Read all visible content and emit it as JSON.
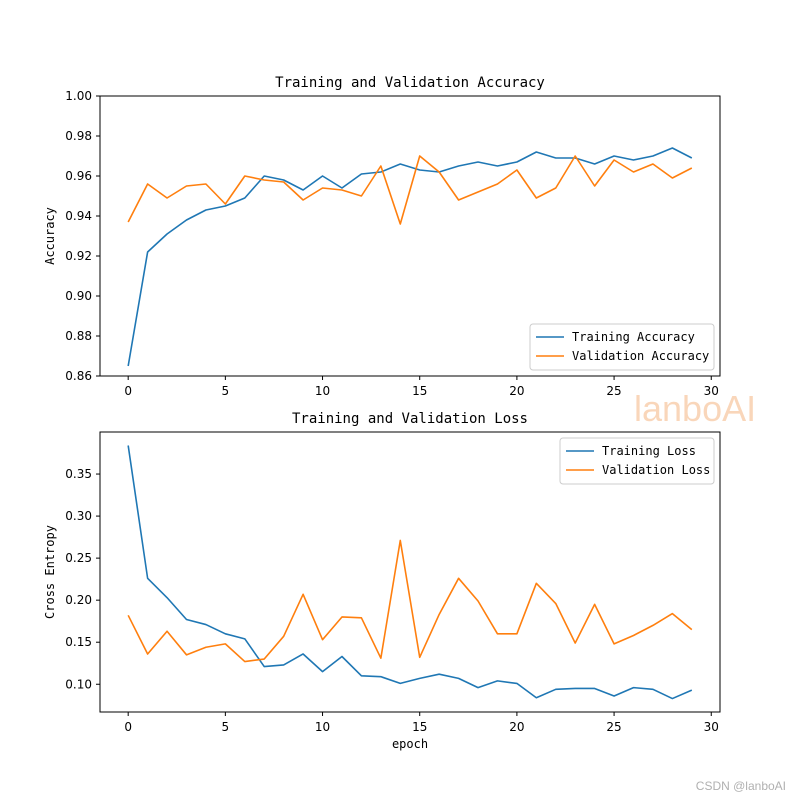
{
  "watermark": "lanboAI",
  "credit": "CSDN @lanboAI",
  "colors": {
    "training": "#1f77b4",
    "validation": "#ff7f0e"
  },
  "chart_data": [
    {
      "type": "line",
      "title": "Training and Validation Accuracy",
      "xlabel": "",
      "ylabel": "Accuracy",
      "xlim": [
        -1.45,
        30.45
      ],
      "ylim": [
        0.86,
        1.0
      ],
      "xticks": [
        0,
        5,
        10,
        15,
        20,
        25,
        30
      ],
      "yticks": [
        0.86,
        0.88,
        0.9,
        0.92,
        0.94,
        0.96,
        0.98,
        1.0
      ],
      "ytick_labels": [
        "0.86",
        "0.88",
        "0.90",
        "0.92",
        "0.94",
        "0.96",
        "0.98",
        "1.00"
      ],
      "legend_position": "lower-right",
      "x": [
        0,
        1,
        2,
        3,
        4,
        5,
        6,
        7,
        8,
        9,
        10,
        11,
        12,
        13,
        14,
        15,
        16,
        17,
        18,
        19,
        20,
        21,
        22,
        23,
        24,
        25,
        26,
        27,
        28,
        29
      ],
      "series": [
        {
          "name": "Training Accuracy",
          "color": "#1f77b4",
          "values": [
            0.865,
            0.922,
            0.931,
            0.938,
            0.943,
            0.945,
            0.949,
            0.96,
            0.958,
            0.953,
            0.96,
            0.954,
            0.961,
            0.962,
            0.966,
            0.963,
            0.962,
            0.965,
            0.967,
            0.965,
            0.967,
            0.972,
            0.969,
            0.969,
            0.966,
            0.97,
            0.968,
            0.97,
            0.974,
            0.969
          ]
        },
        {
          "name": "Validation Accuracy",
          "color": "#ff7f0e",
          "values": [
            0.937,
            0.956,
            0.949,
            0.955,
            0.956,
            0.946,
            0.96,
            0.958,
            0.957,
            0.948,
            0.954,
            0.953,
            0.95,
            0.965,
            0.936,
            0.97,
            0.962,
            0.948,
            0.952,
            0.956,
            0.963,
            0.949,
            0.954,
            0.97,
            0.955,
            0.968,
            0.962,
            0.966,
            0.959,
            0.964
          ]
        }
      ]
    },
    {
      "type": "line",
      "title": "Training and Validation Loss",
      "xlabel": "epoch",
      "ylabel": "Cross Entropy",
      "xlim": [
        -1.45,
        30.45
      ],
      "ylim": [
        0.067,
        0.4
      ],
      "xticks": [
        0,
        5,
        10,
        15,
        20,
        25,
        30
      ],
      "yticks": [
        0.1,
        0.15,
        0.2,
        0.25,
        0.3,
        0.35
      ],
      "ytick_labels": [
        "0.10",
        "0.15",
        "0.20",
        "0.25",
        "0.30",
        "0.35"
      ],
      "legend_position": "upper-right",
      "x": [
        0,
        1,
        2,
        3,
        4,
        5,
        6,
        7,
        8,
        9,
        10,
        11,
        12,
        13,
        14,
        15,
        16,
        17,
        18,
        19,
        20,
        21,
        22,
        23,
        24,
        25,
        26,
        27,
        28,
        29
      ],
      "series": [
        {
          "name": "Training Loss",
          "color": "#1f77b4",
          "values": [
            0.384,
            0.226,
            0.203,
            0.177,
            0.171,
            0.16,
            0.154,
            0.121,
            0.123,
            0.136,
            0.115,
            0.133,
            0.11,
            0.109,
            0.101,
            0.107,
            0.112,
            0.107,
            0.096,
            0.104,
            0.101,
            0.084,
            0.094,
            0.095,
            0.095,
            0.086,
            0.096,
            0.094,
            0.083,
            0.093
          ]
        },
        {
          "name": "Validation Loss",
          "color": "#ff7f0e",
          "values": [
            0.182,
            0.136,
            0.163,
            0.135,
            0.144,
            0.148,
            0.127,
            0.13,
            0.157,
            0.207,
            0.153,
            0.18,
            0.179,
            0.131,
            0.271,
            0.132,
            0.183,
            0.226,
            0.199,
            0.16,
            0.16,
            0.22,
            0.196,
            0.149,
            0.195,
            0.148,
            0.158,
            0.17,
            0.184,
            0.165
          ]
        }
      ]
    }
  ]
}
